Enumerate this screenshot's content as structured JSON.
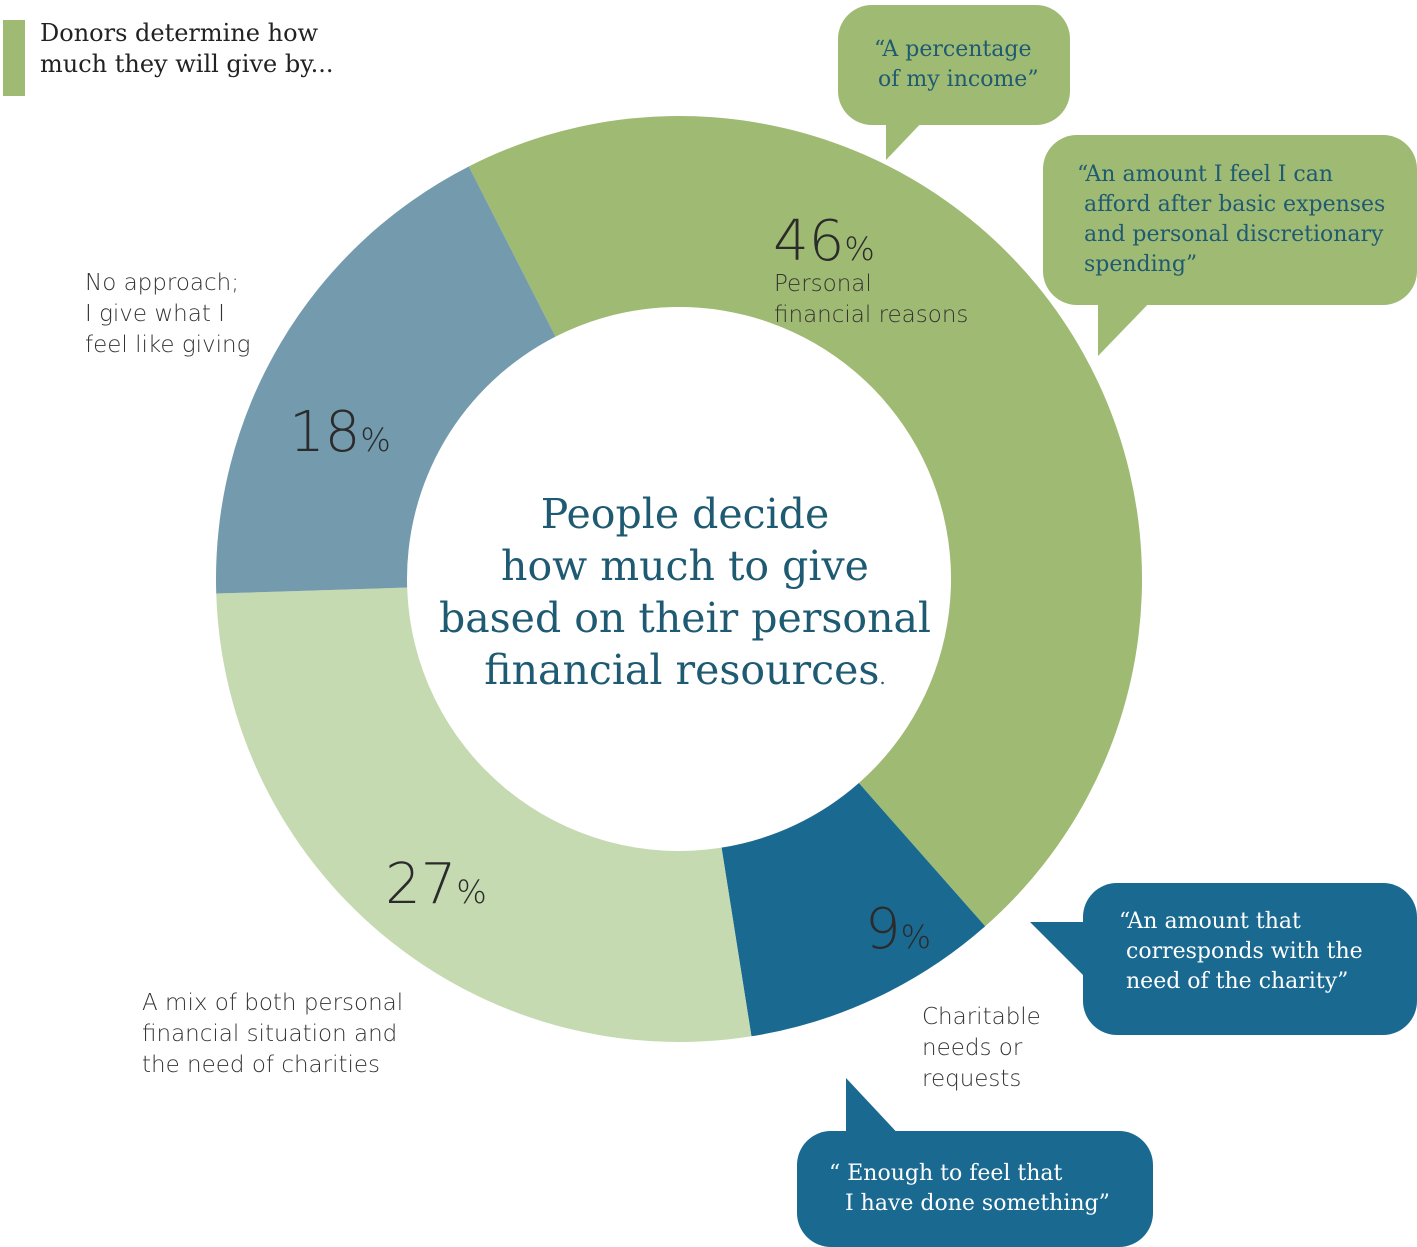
{
  "header": {
    "lines": [
      "Donors determine how",
      "much they will give by..."
    ]
  },
  "center_text": {
    "lines": [
      "People decide",
      "how much to give",
      "based on their personal",
      "financial resources"
    ],
    "suffix": "."
  },
  "chart_data": {
    "type": "pie",
    "variant": "donut",
    "categories": [
      "Personal financial reasons",
      "Charitable needs or requests",
      "A mix of both personal financial situation and the need of charities",
      "No approach; I give what I feel like giving"
    ],
    "values": [
      46,
      9,
      27,
      18
    ],
    "value_labels": [
      "46",
      "9",
      "27",
      "18"
    ],
    "percent_sign": "%",
    "colors": [
      "#9fba72",
      "#1a6991",
      "#c5dab0",
      "#739bad"
    ],
    "label_lines": [
      [
        "Personal",
        "financial reasons"
      ],
      [
        "Charitable",
        "needs or",
        "requests"
      ],
      [
        "A mix of both personal",
        "financial situation and",
        "the need of charities"
      ],
      [
        "No approach;",
        "I give what I",
        "feel like giving"
      ]
    ]
  },
  "quotes": [
    {
      "lines": [
        "“A percentage",
        "of my income”"
      ],
      "color": "#9fba72"
    },
    {
      "lines": [
        "“An amount I feel I can",
        "afford after basic expenses",
        "and personal discretionary",
        "spending”"
      ],
      "color": "#9fba72"
    },
    {
      "lines": [
        "“An amount that",
        "corresponds with the",
        "need of the charity”"
      ],
      "color": "#1a6991"
    },
    {
      "lines": [
        "“ Enough to feel that",
        "I have done  something”"
      ],
      "color": "#1a6991"
    }
  ]
}
